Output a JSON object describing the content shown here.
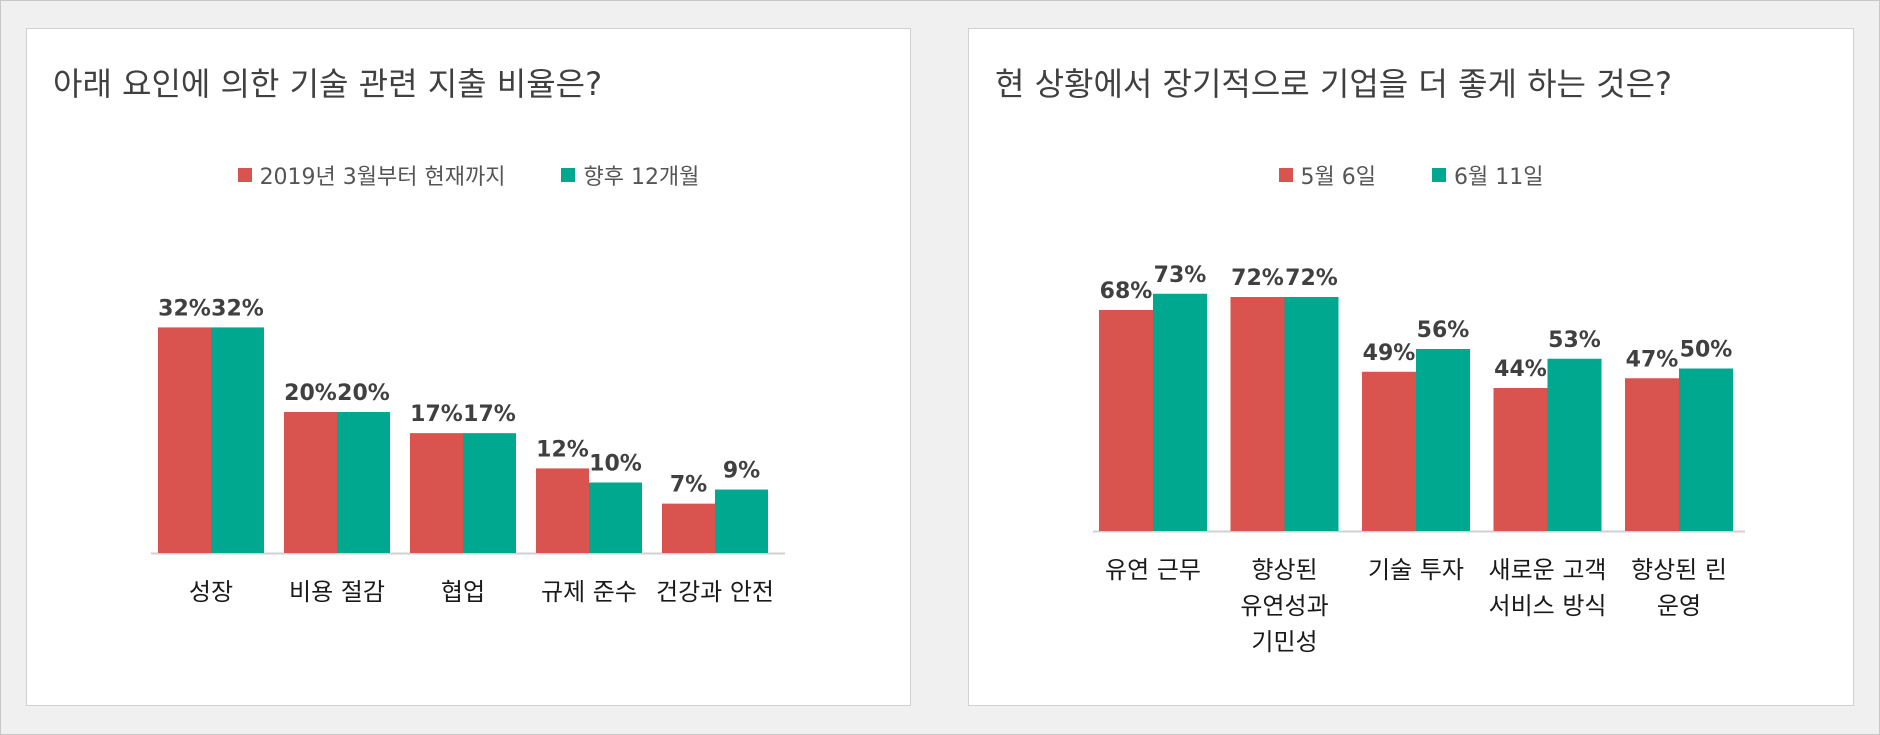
{
  "colors": {
    "series1": "#d9534f",
    "series2": "#00a88f"
  },
  "chart_data": [
    {
      "type": "bar",
      "title": "아래 요인에 의한 기술 관련 지출 비율은?",
      "categories": [
        [
          "성장"
        ],
        [
          "비용 절감"
        ],
        [
          "협업"
        ],
        [
          "규제 준수"
        ],
        [
          "건강과 안전"
        ]
      ],
      "series": [
        {
          "name": "2019년 3월부터 현재까지",
          "values": [
            32,
            20,
            17,
            12,
            7
          ],
          "labels": [
            "32%",
            "20%",
            "17%",
            "12%",
            "7%"
          ]
        },
        {
          "name": "향후 12개월",
          "values": [
            32,
            20,
            17,
            10,
            9
          ],
          "labels": [
            "32%",
            "20%",
            "17%",
            "10%",
            "9%"
          ]
        }
      ],
      "ylim": [
        0,
        40
      ],
      "grid": false,
      "legend": "top"
    },
    {
      "type": "bar",
      "title": "현 상황에서 장기적으로 기업을 더 좋게 하는 것은?",
      "categories": [
        [
          "유연 근무"
        ],
        [
          "향상된",
          "유연성과",
          "기민성"
        ],
        [
          "기술 투자"
        ],
        [
          "새로운 고객",
          "서비스 방식"
        ],
        [
          "향상된 린",
          "운영"
        ]
      ],
      "series": [
        {
          "name": "5월 6일",
          "values": [
            68,
            72,
            49,
            44,
            47
          ],
          "labels": [
            "68%",
            "72%",
            "49%",
            "44%",
            "47%"
          ]
        },
        {
          "name": "6월 11일",
          "values": [
            73,
            72,
            56,
            53,
            50
          ],
          "labels": [
            "73%",
            "72%",
            "56%",
            "53%",
            "50%"
          ]
        }
      ],
      "ylim": [
        0,
        80
      ],
      "grid": false,
      "legend": "top"
    }
  ]
}
